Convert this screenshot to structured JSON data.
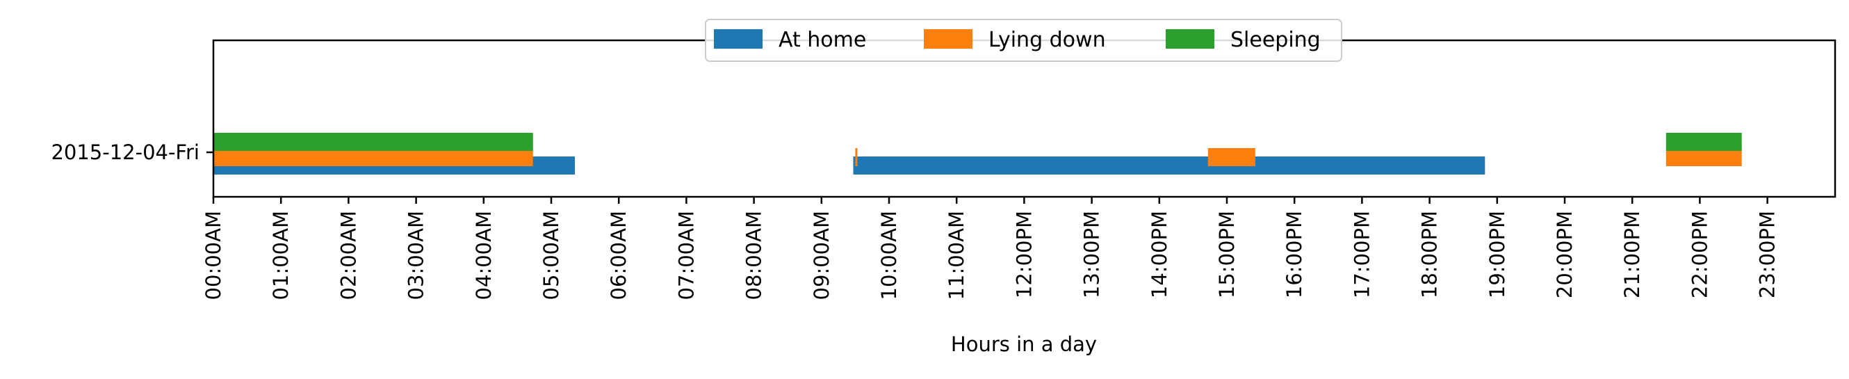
{
  "chart_data": {
    "type": "bar",
    "orientation": "horizontal-timeline",
    "title": "",
    "xlabel": "Hours in a day",
    "ylabel": "",
    "xlim": [
      0,
      24
    ],
    "categories": [
      "2015-12-04-Fri"
    ],
    "x_ticks": [
      {
        "value": 0,
        "label": "00:00AM"
      },
      {
        "value": 1,
        "label": "01:00AM"
      },
      {
        "value": 2,
        "label": "02:00AM"
      },
      {
        "value": 3,
        "label": "03:00AM"
      },
      {
        "value": 4,
        "label": "04:00AM"
      },
      {
        "value": 5,
        "label": "05:00AM"
      },
      {
        "value": 6,
        "label": "06:00AM"
      },
      {
        "value": 7,
        "label": "07:00AM"
      },
      {
        "value": 8,
        "label": "08:00AM"
      },
      {
        "value": 9,
        "label": "09:00AM"
      },
      {
        "value": 10,
        "label": "10:00AM"
      },
      {
        "value": 11,
        "label": "11:00AM"
      },
      {
        "value": 12,
        "label": "12:00PM"
      },
      {
        "value": 13,
        "label": "13:00PM"
      },
      {
        "value": 14,
        "label": "14:00PM"
      },
      {
        "value": 15,
        "label": "15:00PM"
      },
      {
        "value": 16,
        "label": "16:00PM"
      },
      {
        "value": 17,
        "label": "17:00PM"
      },
      {
        "value": 18,
        "label": "18:00PM"
      },
      {
        "value": 19,
        "label": "19:00PM"
      },
      {
        "value": 20,
        "label": "20:00PM"
      },
      {
        "value": 21,
        "label": "21:00PM"
      },
      {
        "value": 22,
        "label": "22:00PM"
      },
      {
        "value": 23,
        "label": "23:00PM"
      }
    ],
    "legend": {
      "placement": "upper-center",
      "ncol": 3
    },
    "grid": false,
    "series": [
      {
        "name": "At home",
        "color": "#1f77b4",
        "intervals": [
          {
            "category": "2015-12-04-Fri",
            "start": 0.0,
            "end": 5.35
          },
          {
            "category": "2015-12-04-Fri",
            "start": 9.47,
            "end": 18.82
          }
        ]
      },
      {
        "name": "Lying down",
        "color": "#ff7f0e",
        "intervals": [
          {
            "category": "2015-12-04-Fri",
            "start": 0.0,
            "end": 4.73
          },
          {
            "category": "2015-12-04-Fri",
            "start": 9.5,
            "end": 9.53
          },
          {
            "category": "2015-12-04-Fri",
            "start": 14.72,
            "end": 15.42
          },
          {
            "category": "2015-12-04-Fri",
            "start": 21.5,
            "end": 22.62
          }
        ]
      },
      {
        "name": "Sleeping",
        "color": "#2ca02c",
        "intervals": [
          {
            "category": "2015-12-04-Fri",
            "start": 0.0,
            "end": 4.73
          },
          {
            "category": "2015-12-04-Fri",
            "start": 21.5,
            "end": 22.62
          }
        ]
      }
    ]
  }
}
